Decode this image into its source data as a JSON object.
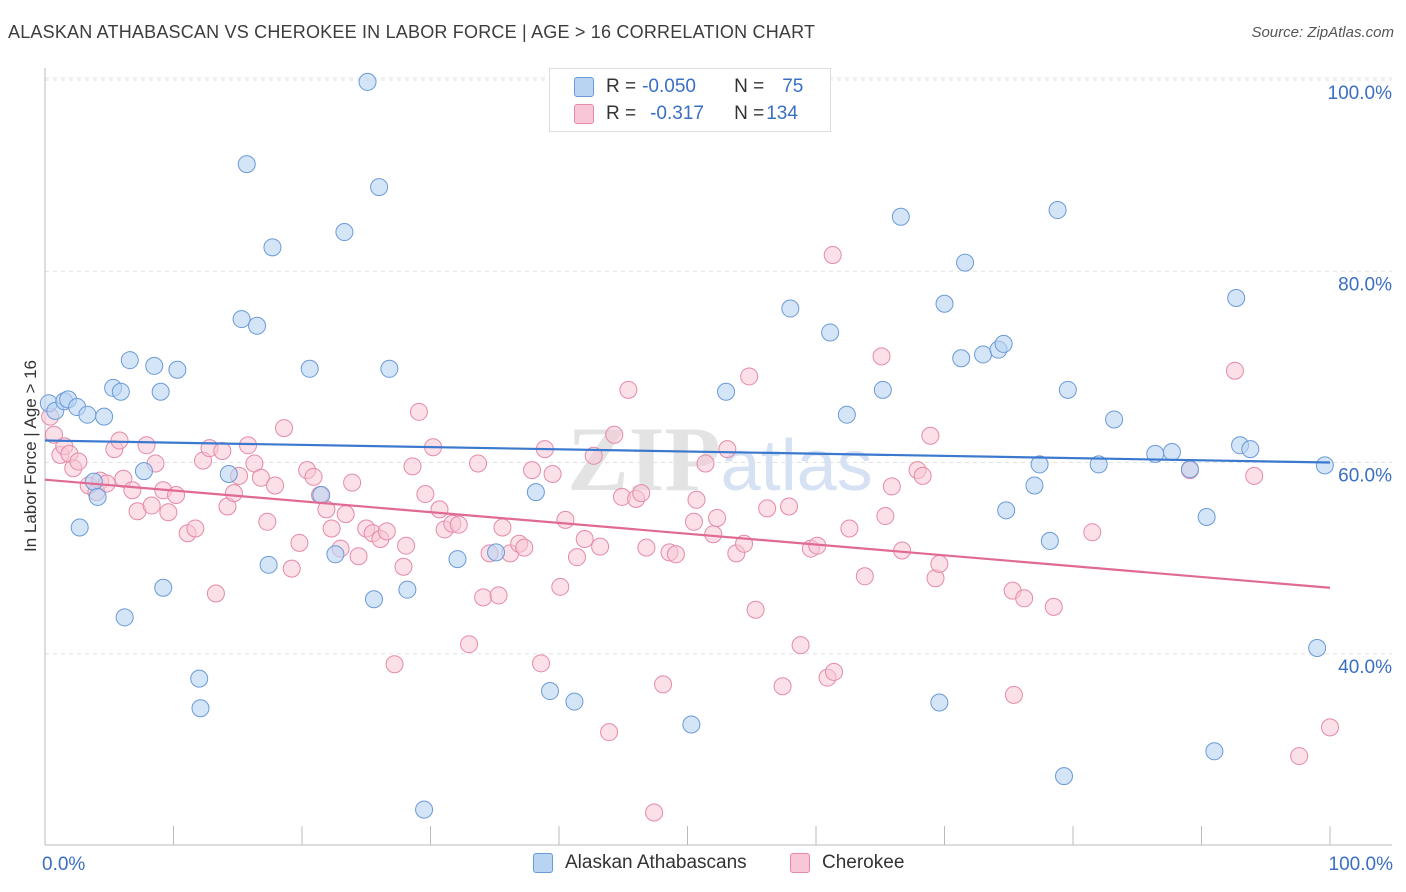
{
  "title": "ALASKAN ATHABASCAN VS CHEROKEE IN LABOR FORCE | AGE > 16 CORRELATION CHART",
  "source": "Source: ZipAtlas.com",
  "watermark": "ZIPatlas",
  "legend": {
    "row1": {
      "r_label": "R = ",
      "r_value": "-0.050",
      "n_label": "N = ",
      "n_value": "75"
    },
    "row2": {
      "r_label": "R = ",
      "r_value": "-0.317",
      "n_label": "N = ",
      "n_value": "134"
    }
  },
  "colors": {
    "blue_fill": "#b9d3f3",
    "blue_stroke": "#6a9ad8",
    "blue_line": "#3b79cf",
    "pink_fill": "#f8c6d6",
    "pink_stroke": "#e58aa8",
    "pink_line": "#e06a93",
    "axis_label": "#3a6fc4",
    "grid": "#e1e1e1"
  },
  "chart_data": {
    "type": "scatter",
    "title": "ALASKAN ATHABASCAN VS CHEROKEE IN LABOR FORCE | AGE > 16 CORRELATION CHART",
    "xlabel": "",
    "ylabel": "In Labor Force | Age > 16",
    "xlim": [
      0,
      100
    ],
    "ylim": [
      20,
      102
    ],
    "x_tick_labels": [
      "0.0%",
      "100.0%"
    ],
    "y_ticks": [
      40,
      60,
      80,
      100
    ],
    "y_tick_labels": [
      "40.0%",
      "60.0%",
      "80.0%",
      "100.0%"
    ],
    "grid": true,
    "legend_position": "top-center",
    "series": [
      {
        "name": "Alaskan Athabascans",
        "color": "#6a9ad8",
        "trend": {
          "x": [
            0,
            100
          ],
          "y": [
            62.3,
            60.0
          ]
        },
        "points": [
          [
            0.3,
            66.2
          ],
          [
            0.8,
            65.4
          ],
          [
            1.5,
            66.4
          ],
          [
            1.8,
            66.6
          ],
          [
            2.5,
            65.8
          ],
          [
            2.7,
            53.2
          ],
          [
            3.3,
            65.0
          ],
          [
            3.8,
            58.0
          ],
          [
            4.1,
            56.4
          ],
          [
            4.6,
            64.8
          ],
          [
            5.3,
            67.8
          ],
          [
            5.9,
            67.4
          ],
          [
            6.2,
            43.8
          ],
          [
            6.6,
            70.7
          ],
          [
            7.7,
            59.1
          ],
          [
            8.5,
            70.1
          ],
          [
            9.0,
            67.4
          ],
          [
            9.2,
            46.9
          ],
          [
            10.3,
            69.7
          ],
          [
            12.0,
            37.4
          ],
          [
            12.1,
            34.3
          ],
          [
            14.3,
            58.8
          ],
          [
            15.3,
            75.0
          ],
          [
            15.7,
            91.2
          ],
          [
            16.5,
            74.3
          ],
          [
            17.4,
            49.3
          ],
          [
            17.7,
            82.5
          ],
          [
            20.6,
            69.8
          ],
          [
            21.5,
            56.6
          ],
          [
            22.6,
            50.4
          ],
          [
            23.3,
            84.1
          ],
          [
            25.1,
            99.8
          ],
          [
            25.6,
            45.7
          ],
          [
            26.0,
            88.8
          ],
          [
            26.8,
            69.8
          ],
          [
            28.2,
            46.7
          ],
          [
            29.5,
            23.7
          ],
          [
            32.1,
            49.9
          ],
          [
            35.1,
            50.6
          ],
          [
            38.2,
            56.9
          ],
          [
            39.3,
            36.1
          ],
          [
            41.2,
            35.0
          ],
          [
            50.3,
            32.6
          ],
          [
            53.0,
            67.4
          ],
          [
            58.0,
            76.1
          ],
          [
            61.1,
            73.6
          ],
          [
            62.4,
            65.0
          ],
          [
            65.2,
            67.6
          ],
          [
            66.6,
            85.7
          ],
          [
            69.6,
            34.9
          ],
          [
            70.0,
            76.6
          ],
          [
            71.3,
            70.9
          ],
          [
            71.6,
            80.9
          ],
          [
            73.0,
            71.3
          ],
          [
            74.2,
            71.8
          ],
          [
            74.6,
            72.4
          ],
          [
            74.8,
            55.0
          ],
          [
            77.0,
            57.6
          ],
          [
            77.4,
            59.8
          ],
          [
            78.2,
            51.8
          ],
          [
            78.8,
            86.4
          ],
          [
            79.3,
            27.2
          ],
          [
            79.6,
            67.6
          ],
          [
            82.0,
            59.8
          ],
          [
            83.2,
            64.5
          ],
          [
            86.4,
            60.9
          ],
          [
            87.7,
            61.1
          ],
          [
            89.1,
            59.3
          ],
          [
            90.4,
            54.3
          ],
          [
            91.0,
            29.8
          ],
          [
            92.7,
            77.2
          ],
          [
            93.0,
            61.8
          ],
          [
            93.8,
            61.4
          ],
          [
            99.0,
            40.6
          ],
          [
            99.6,
            59.7
          ]
        ]
      },
      {
        "name": "Cherokee",
        "color": "#e58aa8",
        "trend": {
          "x": [
            0,
            100
          ],
          "y": [
            58.2,
            46.9
          ]
        },
        "points": [
          [
            0.4,
            64.8
          ],
          [
            0.7,
            62.9
          ],
          [
            1.2,
            60.8
          ],
          [
            1.5,
            61.7
          ],
          [
            1.9,
            60.9
          ],
          [
            2.2,
            59.4
          ],
          [
            2.6,
            60.1
          ],
          [
            3.4,
            57.6
          ],
          [
            4.0,
            56.9
          ],
          [
            4.3,
            58.1
          ],
          [
            4.8,
            57.8
          ],
          [
            5.4,
            61.4
          ],
          [
            5.8,
            62.3
          ],
          [
            6.1,
            58.3
          ],
          [
            6.8,
            57.1
          ],
          [
            7.2,
            54.9
          ],
          [
            7.9,
            61.8
          ],
          [
            8.3,
            55.5
          ],
          [
            8.6,
            59.9
          ],
          [
            9.2,
            57.1
          ],
          [
            9.6,
            54.8
          ],
          [
            10.2,
            56.6
          ],
          [
            11.1,
            52.6
          ],
          [
            11.7,
            53.1
          ],
          [
            12.3,
            60.2
          ],
          [
            12.8,
            61.5
          ],
          [
            13.3,
            46.3
          ],
          [
            13.8,
            61.2
          ],
          [
            14.2,
            55.4
          ],
          [
            14.7,
            56.8
          ],
          [
            15.1,
            58.6
          ],
          [
            15.8,
            61.8
          ],
          [
            16.3,
            59.9
          ],
          [
            16.8,
            58.4
          ],
          [
            17.3,
            53.8
          ],
          [
            17.9,
            57.6
          ],
          [
            18.6,
            63.6
          ],
          [
            19.2,
            48.9
          ],
          [
            19.8,
            51.6
          ],
          [
            20.4,
            59.2
          ],
          [
            20.9,
            58.5
          ],
          [
            21.4,
            56.6
          ],
          [
            21.9,
            55.1
          ],
          [
            22.3,
            53.1
          ],
          [
            23.0,
            51.0
          ],
          [
            23.4,
            54.6
          ],
          [
            23.9,
            57.9
          ],
          [
            24.4,
            50.2
          ],
          [
            25.0,
            53.1
          ],
          [
            25.5,
            52.6
          ],
          [
            26.1,
            52.0
          ],
          [
            26.6,
            52.8
          ],
          [
            27.2,
            38.9
          ],
          [
            27.9,
            49.1
          ],
          [
            28.1,
            51.3
          ],
          [
            28.6,
            59.6
          ],
          [
            29.1,
            65.3
          ],
          [
            29.6,
            56.7
          ],
          [
            30.2,
            61.6
          ],
          [
            30.7,
            55.1
          ],
          [
            31.1,
            53.0
          ],
          [
            31.7,
            53.6
          ],
          [
            32.2,
            53.5
          ],
          [
            33.0,
            41.0
          ],
          [
            33.7,
            59.9
          ],
          [
            34.1,
            45.9
          ],
          [
            34.6,
            50.5
          ],
          [
            35.3,
            46.1
          ],
          [
            35.6,
            53.2
          ],
          [
            36.2,
            50.5
          ],
          [
            36.9,
            51.5
          ],
          [
            37.3,
            51.1
          ],
          [
            37.9,
            59.2
          ],
          [
            38.6,
            39.0
          ],
          [
            38.9,
            61.4
          ],
          [
            39.5,
            58.8
          ],
          [
            40.1,
            47.0
          ],
          [
            40.5,
            54.0
          ],
          [
            41.4,
            50.1
          ],
          [
            42.0,
            52.0
          ],
          [
            42.7,
            60.7
          ],
          [
            43.2,
            51.2
          ],
          [
            43.9,
            31.8
          ],
          [
            44.3,
            62.9
          ],
          [
            44.9,
            56.4
          ],
          [
            45.4,
            67.6
          ],
          [
            46.0,
            56.2
          ],
          [
            46.4,
            56.8
          ],
          [
            46.8,
            51.1
          ],
          [
            47.4,
            23.4
          ],
          [
            48.1,
            36.8
          ],
          [
            48.6,
            50.6
          ],
          [
            49.1,
            50.4
          ],
          [
            50.5,
            53.8
          ],
          [
            50.7,
            56.1
          ],
          [
            51.4,
            59.9
          ],
          [
            52.0,
            52.5
          ],
          [
            52.3,
            54.2
          ],
          [
            53.1,
            61.4
          ],
          [
            53.8,
            50.5
          ],
          [
            54.4,
            51.5
          ],
          [
            54.8,
            69.0
          ],
          [
            55.3,
            44.6
          ],
          [
            56.2,
            55.2
          ],
          [
            57.4,
            36.6
          ],
          [
            57.9,
            55.4
          ],
          [
            58.8,
            40.9
          ],
          [
            59.6,
            51.0
          ],
          [
            60.1,
            51.3
          ],
          [
            60.9,
            37.5
          ],
          [
            61.3,
            81.7
          ],
          [
            61.4,
            38.1
          ],
          [
            62.6,
            53.1
          ],
          [
            63.8,
            48.1
          ],
          [
            65.1,
            71.1
          ],
          [
            65.4,
            54.4
          ],
          [
            65.9,
            57.5
          ],
          [
            66.7,
            50.8
          ],
          [
            67.9,
            59.2
          ],
          [
            68.3,
            58.6
          ],
          [
            68.9,
            62.8
          ],
          [
            69.3,
            47.9
          ],
          [
            69.6,
            49.4
          ],
          [
            75.3,
            46.6
          ],
          [
            75.4,
            35.7
          ],
          [
            76.2,
            45.8
          ],
          [
            78.5,
            44.9
          ],
          [
            81.5,
            52.7
          ],
          [
            89.1,
            59.2
          ],
          [
            92.6,
            69.6
          ],
          [
            94.1,
            58.6
          ],
          [
            97.6,
            29.3
          ],
          [
            100.0,
            32.3
          ]
        ]
      }
    ]
  },
  "bottom_legend": {
    "series1": "Alaskan Athabascans",
    "series2": "Cherokee"
  }
}
